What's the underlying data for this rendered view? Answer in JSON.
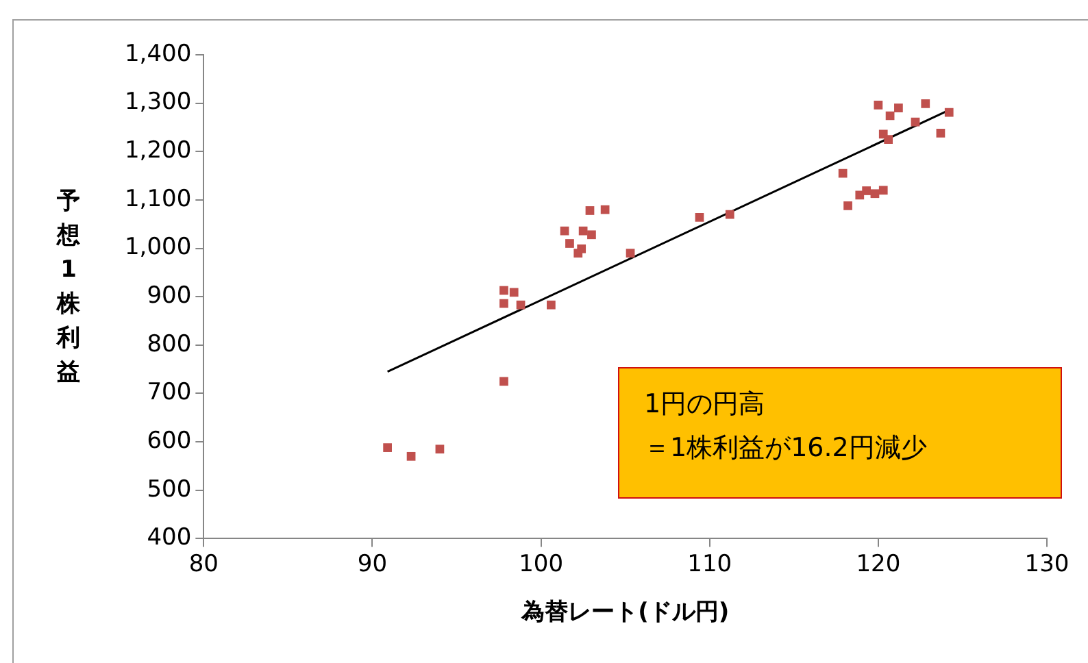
{
  "chart_data": {
    "type": "scatter",
    "xlabel": "為替レート(ドル円)",
    "ylabel": "予想1株利益",
    "xlim": [
      80,
      130
    ],
    "xticks": [
      80,
      90,
      100,
      110,
      120,
      130
    ],
    "ylim": [
      400,
      1400
    ],
    "yticks": [
      {
        "value": 400,
        "label": "400"
      },
      {
        "value": 500,
        "label": "500"
      },
      {
        "value": 600,
        "label": "600"
      },
      {
        "value": 700,
        "label": "700"
      },
      {
        "value": 800,
        "label": "800"
      },
      {
        "value": 900,
        "label": "900"
      },
      {
        "value": 1000,
        "label": "1,000"
      },
      {
        "value": 1100,
        "label": "1,100"
      },
      {
        "value": 1200,
        "label": "1,200"
      },
      {
        "value": 1300,
        "label": "1,300"
      },
      {
        "value": 1400,
        "label": "1,400"
      }
    ],
    "grid": false,
    "legend": false,
    "marker": "square",
    "annotations": [
      "1円の円高",
      "＝1株利益が16.2円減少"
    ],
    "series": [
      {
        "color": "#c0504d",
        "x": [
          90.9,
          92.3,
          94.0,
          97.8,
          97.8,
          97.8,
          98.4,
          98.8,
          100.6,
          101.4,
          101.7,
          102.2,
          102.4,
          102.5,
          102.9,
          103.0,
          103.8,
          105.3,
          109.4,
          111.2,
          117.9,
          118.2,
          118.9,
          119.3,
          119.8,
          120.0,
          120.3,
          120.3,
          120.6,
          120.7,
          121.2,
          122.2,
          122.8,
          123.7,
          124.2
        ],
        "values": [
          588,
          570,
          585,
          725,
          913,
          886,
          909,
          883,
          883,
          1036,
          1010,
          990,
          999,
          1036,
          1078,
          1028,
          1080,
          990,
          1064,
          1070,
          1155,
          1088,
          1110,
          1119,
          1113,
          1296,
          1120,
          1236,
          1225,
          1274,
          1290,
          1261,
          1299,
          1238,
          1281
        ]
      },
      {
        "type": "line",
        "color": "#000000",
        "marker": "none",
        "x": [
          90.9,
          124.1
        ],
        "values": [
          745,
          1284
        ]
      }
    ]
  }
}
